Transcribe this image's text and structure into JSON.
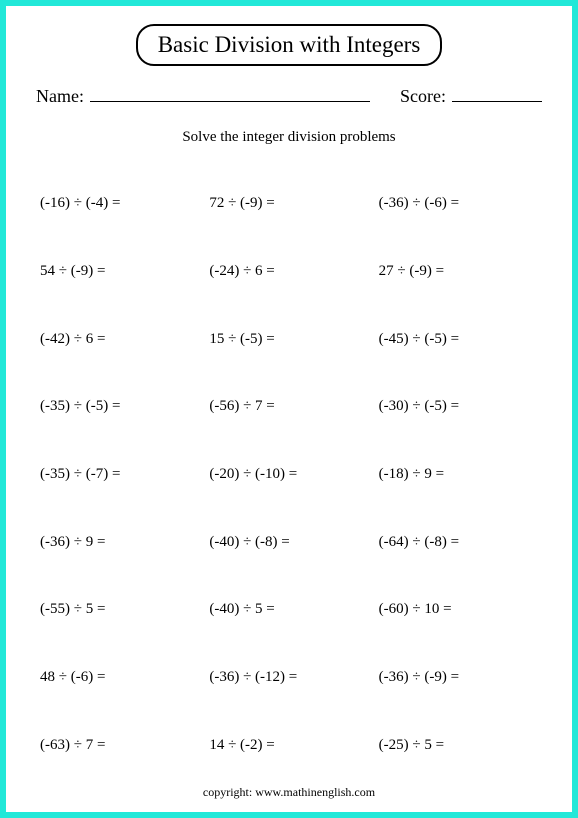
{
  "title": "Basic Division with Integers",
  "name_label": "Name:",
  "score_label": "Score:",
  "instructions": "Solve the integer division problems",
  "problems": [
    "(-16) ÷ (-4) =",
    "72 ÷ (-9) =",
    "(-36) ÷ (-6) =",
    "54 ÷ (-9) =",
    "(-24) ÷ 6 =",
    "27 ÷ (-9) =",
    "(-42) ÷ 6 =",
    "15 ÷ (-5) =",
    "(-45) ÷ (-5) =",
    "(-35) ÷ (-5) =",
    "(-56) ÷ 7 =",
    "(-30) ÷ (-5) =",
    "(-35) ÷ (-7) =",
    "(-20) ÷ (-10) =",
    "(-18) ÷ 9 =",
    "(-36) ÷ 9 =",
    "(-40) ÷ (-8) =",
    "(-64) ÷ (-8) =",
    "(-55) ÷ 5 =",
    "(-40) ÷ 5 =",
    "(-60) ÷ 10 =",
    "48 ÷ (-6) =",
    "(-36) ÷ (-12) =",
    "(-36) ÷ (-9) =",
    "(-63) ÷ 7 =",
    "14 ÷ (-2) =",
    "(-25) ÷ 5 ="
  ],
  "copyright": "copyright:   www.mathinenglish.com",
  "colors": {
    "page_border": "#22e8d8",
    "page_bg": "#ffffff",
    "text": "#000000"
  }
}
